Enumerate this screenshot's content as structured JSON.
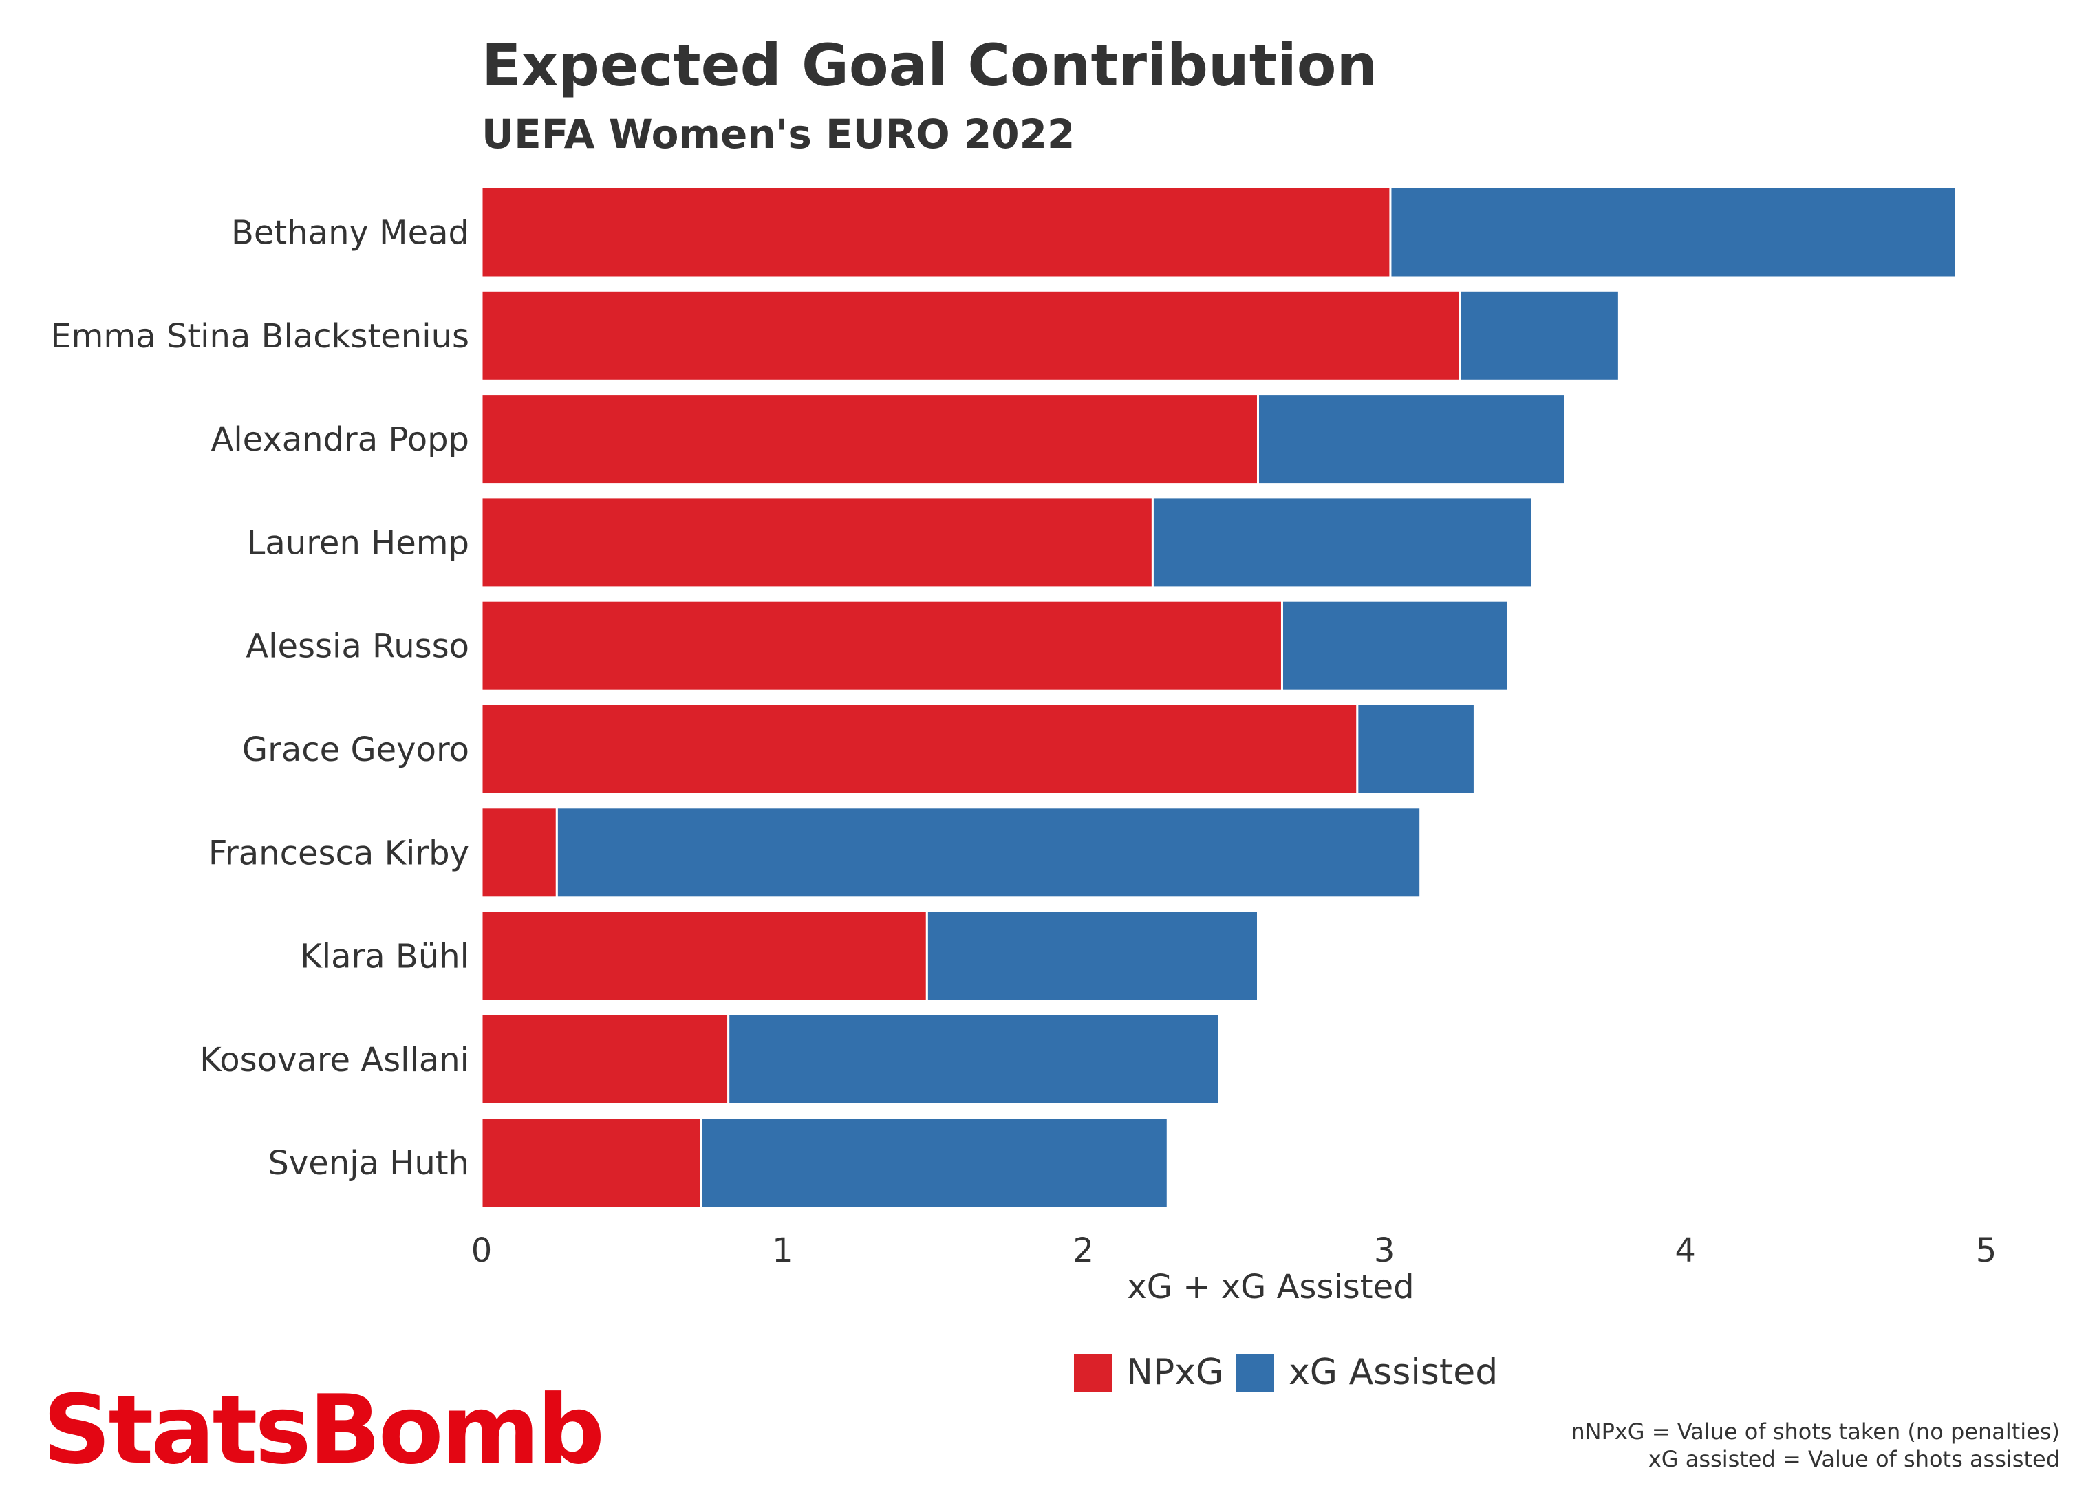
{
  "colors": {
    "npxg": "#DB2129",
    "xga": "#3370AC",
    "text": "#333333",
    "brand": "#E30613",
    "background": "#ffffff"
  },
  "brand": {
    "logo": "StatsBomb"
  },
  "notes": [
    "nNPxG = Value of shots taken (no penalties)",
    "xG assisted = Value of shots assisted"
  ],
  "chart_data": {
    "type": "bar",
    "orientation": "horizontal",
    "stacked": true,
    "title": "Expected Goal Contribution",
    "subtitle": "UEFA Women's EURO 2022",
    "xlabel": "xG + xG Assisted",
    "ylabel": "",
    "xlim": [
      0,
      5
    ],
    "xticks": [
      "0",
      "1",
      "2",
      "3",
      "4",
      "5"
    ],
    "grid": false,
    "legend": {
      "position": "bottom",
      "entries": [
        "NPxG",
        "xG Assisted"
      ]
    },
    "categories": [
      "Bethany Mead",
      "Emma Stina Blackstenius",
      "Alexandra Popp",
      "Lauren Hemp",
      "Alessia Russo",
      "Grace Geyoro",
      "Francesca Kirby",
      "Klara Bühl",
      "Kosovare Asllani",
      "Svenja Huth"
    ],
    "series": [
      {
        "name": "NPxG",
        "values": [
          3.02,
          3.25,
          2.58,
          2.23,
          2.66,
          2.91,
          0.25,
          1.48,
          0.82,
          0.73
        ]
      },
      {
        "name": "xG Assisted",
        "values": [
          1.88,
          0.53,
          1.02,
          1.26,
          0.75,
          0.39,
          2.87,
          1.1,
          1.63,
          1.55
        ]
      }
    ]
  }
}
